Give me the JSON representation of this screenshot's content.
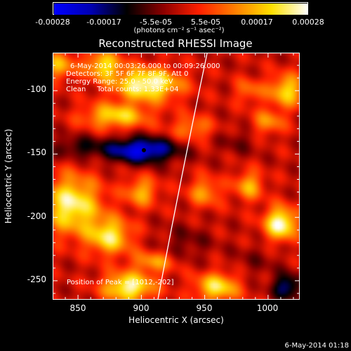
{
  "colorbar": {
    "ticks": [
      "-0.00028",
      "-0.00017",
      "-5.5e-05",
      "5.5e-05",
      "0.00017",
      "0.00028"
    ],
    "units": "(photons cm⁻² s⁻¹ asec⁻²)",
    "range": [
      -0.00028,
      0.00028
    ],
    "colors": [
      "#0000ff",
      "#0000b4",
      "#000000",
      "#8c0000",
      "#ff2000",
      "#ff8000",
      "#ffe000",
      "#ffffff"
    ]
  },
  "info": {
    "time_range": "6-May-2014 00:03:26.000 to 00:09:26.000",
    "detectors": "Detectors: 3F 5F 6F 7F 8F 9F, Att 0",
    "energy_range": "Energy Range: 25.0 - 50.0 keV",
    "algorithm_counts": "Clean     Total counts: 1.33E+04",
    "peak_position": "Position of Peak = [1012,-202]"
  },
  "footer_date": "6-May-2014 01:18",
  "chart_data": {
    "type": "heatmap",
    "title": "Reconstructed RHESSI Image",
    "xlabel": "Heliocentric X (arcsec)",
    "ylabel": "Heliocentric Y (arcsec)",
    "xlim": [
      830,
      1025
    ],
    "ylim": [
      -265,
      -70
    ],
    "xticks": [
      "850",
      "900",
      "950",
      "1000"
    ],
    "yticks": [
      "-100",
      "-150",
      "-200",
      "-250"
    ],
    "zlim": [
      -0.00028,
      0.00028
    ],
    "grid": false,
    "limb_curve": {
      "x": [
        952,
        913
      ],
      "y": [
        -70,
        -265
      ]
    },
    "min_marker": {
      "x": 902,
      "y": -147
    },
    "features": [
      {
        "x": 835,
        "y": -80,
        "value": 0.00016,
        "sx": 9,
        "sy": 8
      },
      {
        "x": 870,
        "y": -80,
        "value": 0.0002,
        "sx": 10,
        "sy": 8
      },
      {
        "x": 905,
        "y": -95,
        "value": 0.00028,
        "sx": 18,
        "sy": 9
      },
      {
        "x": 880,
        "y": -120,
        "value": 0.0002,
        "sx": 18,
        "sy": 7
      },
      {
        "x": 940,
        "y": -130,
        "value": 0.00012,
        "sx": 12,
        "sy": 7
      },
      {
        "x": 900,
        "y": -147,
        "value": -0.00026,
        "sx": 20,
        "sy": 7
      },
      {
        "x": 850,
        "y": -145,
        "value": -0.0001,
        "sx": 14,
        "sy": 6
      },
      {
        "x": 975,
        "y": -140,
        "value": -5e-05,
        "sx": 12,
        "sy": 8
      },
      {
        "x": 845,
        "y": -190,
        "value": 0.00025,
        "sx": 16,
        "sy": 16
      },
      {
        "x": 875,
        "y": -215,
        "value": 0.00022,
        "sx": 12,
        "sy": 10
      },
      {
        "x": 900,
        "y": -180,
        "value": 0.00016,
        "sx": 9,
        "sy": 8
      },
      {
        "x": 950,
        "y": -180,
        "value": 0.00014,
        "sx": 9,
        "sy": 8
      },
      {
        "x": 985,
        "y": -175,
        "value": 0.00016,
        "sx": 8,
        "sy": 8
      },
      {
        "x": 1010,
        "y": -205,
        "value": 0.00028,
        "sx": 9,
        "sy": 9
      },
      {
        "x": 1015,
        "y": -100,
        "value": 0.0002,
        "sx": 10,
        "sy": 9
      },
      {
        "x": 1000,
        "y": -125,
        "value": 0.00013,
        "sx": 9,
        "sy": 7
      },
      {
        "x": 985,
        "y": -100,
        "value": 0.0001,
        "sx": 8,
        "sy": 7
      },
      {
        "x": 910,
        "y": -235,
        "value": 0.00014,
        "sx": 12,
        "sy": 6
      },
      {
        "x": 890,
        "y": -255,
        "value": 0.00026,
        "sx": 14,
        "sy": 8
      },
      {
        "x": 960,
        "y": -255,
        "value": 0.00022,
        "sx": 12,
        "sy": 8
      },
      {
        "x": 935,
        "y": -220,
        "value": -6e-05,
        "sx": 14,
        "sy": 10
      },
      {
        "x": 990,
        "y": -235,
        "value": -4e-05,
        "sx": 14,
        "sy": 10
      },
      {
        "x": 1015,
        "y": -255,
        "value": -0.00018,
        "sx": 8,
        "sy": 7
      }
    ]
  }
}
